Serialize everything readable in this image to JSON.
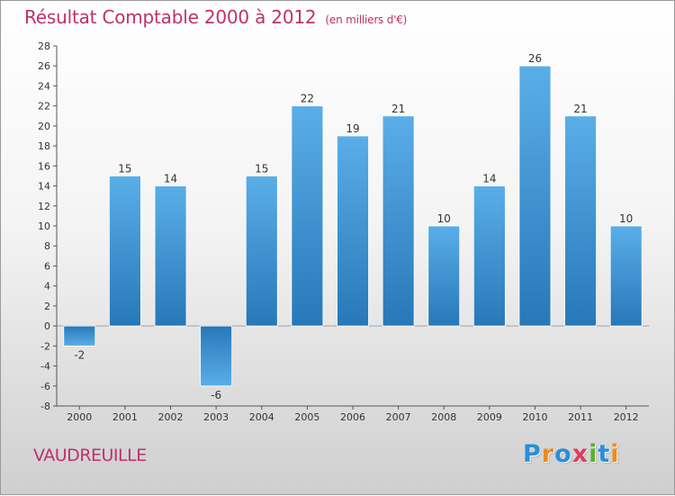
{
  "title": "Résultat Comptable 2000 à 2012",
  "subtitle": "(en milliers d'€)",
  "commune": "VAUDREUILLE",
  "logo": {
    "text": "Proxiti",
    "letters": [
      "P",
      "r",
      "o",
      "x",
      "i",
      "t",
      "i"
    ],
    "colors": [
      "#2a8fd6",
      "#f08a1c",
      "#2a8fd6",
      "#e03c5a",
      "#58b030",
      "#2a8fd6",
      "#f08a1c"
    ]
  },
  "colors": {
    "title": "#c0306a",
    "bar_light": "#5aaee8",
    "bar_dark": "#2778b8",
    "axis": "#555555"
  },
  "chart_data": {
    "type": "bar",
    "title": "Résultat Comptable 2000 à 2012",
    "ylabel": "(en milliers d'€)",
    "xlabel": "",
    "categories": [
      "2000",
      "2001",
      "2002",
      "2003",
      "2004",
      "2005",
      "2006",
      "2007",
      "2008",
      "2009",
      "2010",
      "2011",
      "2012"
    ],
    "values": [
      -2,
      15,
      14,
      -6,
      15,
      22,
      19,
      21,
      10,
      14,
      26,
      21,
      10
    ],
    "ylim": [
      -8,
      28
    ],
    "yticks": [
      -8,
      -6,
      -4,
      -2,
      0,
      2,
      4,
      6,
      8,
      10,
      12,
      14,
      16,
      18,
      20,
      22,
      24,
      26,
      28
    ],
    "grid": false,
    "data_labels": true
  }
}
